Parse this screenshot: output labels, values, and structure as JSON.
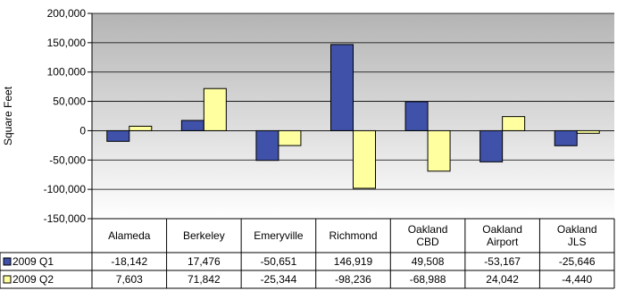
{
  "chart_data": {
    "type": "bar",
    "title": "",
    "xlabel": "",
    "ylabel": "Square Feet",
    "ylim": [
      -150000,
      200000
    ],
    "yticks": [
      200000,
      150000,
      100000,
      50000,
      0,
      -50000,
      -100000,
      -150000
    ],
    "ytick_labels": [
      "200,000",
      "150,000",
      "100,000",
      "50,000",
      "0",
      "-50,000",
      "-100,000",
      "-150,000"
    ],
    "grid": true,
    "legend": "table-rows",
    "categories": [
      [
        "Alameda"
      ],
      [
        "Berkeley"
      ],
      [
        "Emeryville"
      ],
      [
        "Richmond"
      ],
      [
        "Oakland",
        "CBD"
      ],
      [
        "Oakland",
        "Airport"
      ],
      [
        "Oakland",
        "JLS"
      ]
    ],
    "series": [
      {
        "name": "2009 Q1",
        "color": "#3F51A8",
        "values": [
          -18142,
          17476,
          -50651,
          146919,
          49508,
          -53167,
          -25646
        ],
        "value_labels": [
          "-18,142",
          "17,476",
          "-50,651",
          "146,919",
          "49,508",
          "-53,167",
          "-25,646"
        ]
      },
      {
        "name": "2009 Q2",
        "color": "#FFFFA0",
        "values": [
          7603,
          71842,
          -25344,
          -98236,
          -68988,
          24042,
          -4440
        ],
        "value_labels": [
          "7,603",
          "71,842",
          "-25,344",
          "-98,236",
          "-68,988",
          "24,042",
          "-4,440"
        ]
      }
    ]
  }
}
